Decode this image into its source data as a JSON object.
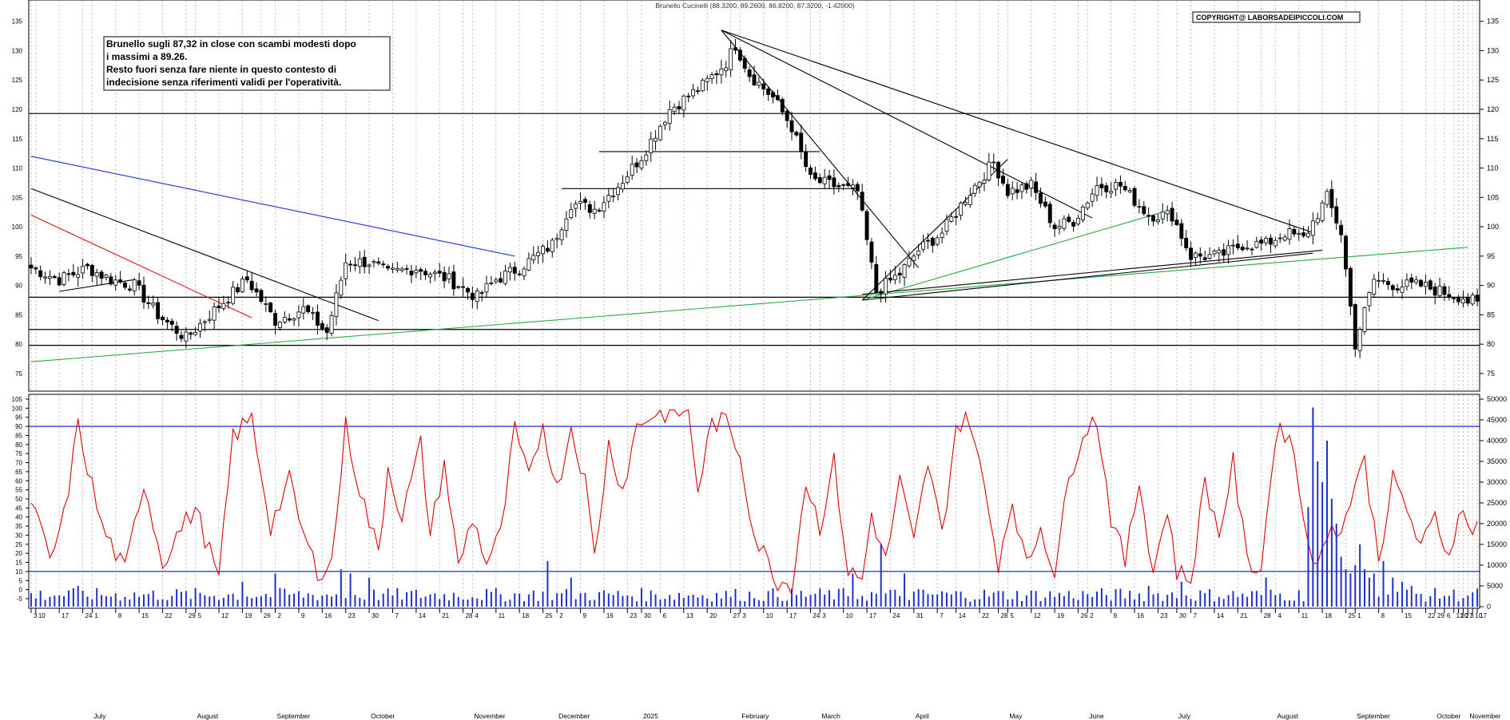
{
  "header": {
    "title": "Brunello Cucinelli (88.3200, 89.2600, 86.8200, 87.3200, -1.42000)",
    "copyright": "COPYRIGHT@ LABORSADEIPICCOLI.COM"
  },
  "annotation": {
    "lines": [
      "Brunello sugli 87,32 in close con scambi modesti dopo",
      "i massimi a 89.26.",
      "Resto fuori senza fare niente in questo contesto di",
      "indecisione senza riferimenti validi per l'operatività."
    ]
  },
  "colors": {
    "candle": "#000000",
    "stochastic": "#e00000",
    "volume": "#1f2fd0",
    "trend_black": "#000000",
    "trend_blue": "#1a2fe0",
    "trend_red": "#e01010",
    "trend_green": "#22aa44",
    "grid": "#bdbdbd"
  },
  "chart_data": [
    {
      "type": "candlestick",
      "ylim": [
        72,
        137
      ],
      "yticks": [
        75,
        80,
        85,
        90,
        95,
        100,
        105,
        110,
        115,
        120,
        125,
        130,
        135
      ],
      "anchors": [
        [
          0,
          93
        ],
        [
          6,
          91
        ],
        [
          12,
          93
        ],
        [
          17,
          91
        ],
        [
          22,
          90
        ],
        [
          27,
          85
        ],
        [
          33,
          81
        ],
        [
          38,
          85
        ],
        [
          46,
          91
        ],
        [
          52,
          84
        ],
        [
          58,
          86
        ],
        [
          63,
          82
        ],
        [
          67,
          94
        ],
        [
          72,
          94
        ],
        [
          76,
          92
        ],
        [
          82,
          93
        ],
        [
          89,
          91
        ],
        [
          95,
          88
        ],
        [
          99,
          91
        ],
        [
          104,
          93
        ],
        [
          111,
          97
        ],
        [
          115,
          104
        ],
        [
          120,
          103
        ],
        [
          125,
          107
        ],
        [
          130,
          112
        ],
        [
          136,
          120
        ],
        [
          143,
          124
        ],
        [
          148,
          128
        ],
        [
          150,
          131
        ],
        [
          153,
          126
        ],
        [
          158,
          122
        ],
        [
          162,
          117
        ],
        [
          166,
          108
        ],
        [
          171,
          107
        ],
        [
          176,
          106
        ],
        [
          180,
          89
        ],
        [
          185,
          92
        ],
        [
          189,
          96
        ],
        [
          194,
          99
        ],
        [
          200,
          106
        ],
        [
          205,
          111
        ],
        [
          208,
          106
        ],
        [
          213,
          107
        ],
        [
          218,
          100
        ],
        [
          222,
          101
        ],
        [
          227,
          107
        ],
        [
          232,
          107
        ],
        [
          238,
          102
        ],
        [
          243,
          102
        ],
        [
          247,
          95
        ],
        [
          253,
          95
        ],
        [
          258,
          97
        ],
        [
          263,
          97
        ],
        [
          267,
          99
        ],
        [
          271,
          98
        ],
        [
          276,
          105
        ],
        [
          279,
          99
        ],
        [
          282,
          80
        ],
        [
          286,
          91
        ],
        [
          291,
          90
        ],
        [
          296,
          90
        ],
        [
          300,
          89
        ],
        [
          305,
          88
        ],
        [
          306,
          87.32
        ]
      ],
      "horizontal_levels": [
        119.3,
        88,
        82.5,
        79.8
      ],
      "trendlines": [
        {
          "color": "black",
          "from": [
            0,
            106.5
          ],
          "to": [
            74,
            84
          ]
        },
        {
          "color": "blue",
          "from": [
            0,
            112
          ],
          "to": [
            103,
            95
          ]
        },
        {
          "color": "red",
          "from": [
            0,
            102
          ],
          "to": [
            47,
            84.5
          ]
        },
        {
          "color": "green",
          "from": [
            0,
            77
          ],
          "to": [
            306,
            96.5
          ]
        },
        {
          "color": "black",
          "from": [
            6,
            89
          ],
          "to": [
            22,
            91
          ]
        },
        {
          "color": "black",
          "from": [
            147,
            133.5
          ],
          "to": [
            189,
            93
          ]
        },
        {
          "color": "black",
          "from": [
            147,
            133.5
          ],
          "to": [
            226,
            101.5
          ]
        },
        {
          "color": "black",
          "from": [
            147,
            133.5
          ],
          "to": [
            273,
            99
          ]
        },
        {
          "color": "black",
          "from": [
            177,
            87.5
          ],
          "to": [
            208,
            111.5
          ]
        },
        {
          "color": "green",
          "from": [
            177,
            87.5
          ],
          "to": [
            241,
            102.5
          ]
        },
        {
          "color": "black",
          "from": [
            177,
            87.5
          ],
          "to": [
            273,
            95.5
          ]
        },
        {
          "color": "black",
          "from": [
            177,
            88.5
          ],
          "to": [
            275,
            96
          ]
        },
        {
          "color": "black",
          "from": [
            121,
            112.8
          ],
          "to": [
            168,
            112.8
          ]
        },
        {
          "color": "black",
          "from": [
            113,
            106.5
          ],
          "to": [
            176,
            106.5
          ]
        }
      ]
    },
    {
      "type": "line",
      "name": "stochastic",
      "ylim": [
        -5,
        100
      ],
      "yticks": [
        -5,
        0,
        5,
        10,
        15,
        20,
        25,
        30,
        35,
        40,
        45,
        50,
        55,
        60,
        65,
        70,
        75,
        80,
        85,
        90,
        95,
        100,
        105
      ],
      "levels": [
        10,
        90
      ],
      "anchors": [
        [
          0,
          50
        ],
        [
          4,
          15
        ],
        [
          7,
          40
        ],
        [
          10,
          90
        ],
        [
          15,
          35
        ],
        [
          20,
          10
        ],
        [
          24,
          60
        ],
        [
          28,
          15
        ],
        [
          31,
          30
        ],
        [
          35,
          45
        ],
        [
          40,
          5
        ],
        [
          43,
          85
        ],
        [
          47,
          94
        ],
        [
          51,
          35
        ],
        [
          55,
          60
        ],
        [
          58,
          30
        ],
        [
          61,
          10
        ],
        [
          64,
          15
        ],
        [
          67,
          90
        ],
        [
          70,
          55
        ],
        [
          74,
          20
        ],
        [
          76,
          68
        ],
        [
          79,
          40
        ],
        [
          83,
          80
        ],
        [
          85,
          30
        ],
        [
          88,
          70
        ],
        [
          91,
          12
        ],
        [
          94,
          40
        ],
        [
          97,
          15
        ],
        [
          100,
          30
        ],
        [
          103,
          88
        ],
        [
          106,
          60
        ],
        [
          109,
          92
        ],
        [
          112,
          55
        ],
        [
          115,
          90
        ],
        [
          118,
          60
        ],
        [
          120,
          18
        ],
        [
          123,
          80
        ],
        [
          126,
          55
        ],
        [
          129,
          90
        ],
        [
          132,
          96
        ],
        [
          137,
          98
        ],
        [
          140,
          98
        ],
        [
          142,
          55
        ],
        [
          145,
          92
        ],
        [
          148,
          92
        ],
        [
          151,
          75
        ],
        [
          154,
          30
        ],
        [
          157,
          15
        ],
        [
          159,
          5
        ],
        [
          162,
          3
        ],
        [
          165,
          60
        ],
        [
          168,
          35
        ],
        [
          171,
          70
        ],
        [
          174,
          10
        ],
        [
          177,
          5
        ],
        [
          179,
          42
        ],
        [
          182,
          15
        ],
        [
          185,
          60
        ],
        [
          188,
          25
        ],
        [
          191,
          70
        ],
        [
          194,
          30
        ],
        [
          197,
          90
        ],
        [
          200,
          94
        ],
        [
          203,
          55
        ],
        [
          206,
          15
        ],
        [
          209,
          50
        ],
        [
          212,
          12
        ],
        [
          215,
          35
        ],
        [
          218,
          10
        ],
        [
          221,
          60
        ],
        [
          224,
          88
        ],
        [
          227,
          94
        ],
        [
          230,
          40
        ],
        [
          233,
          15
        ],
        [
          236,
          60
        ],
        [
          239,
          10
        ],
        [
          242,
          45
        ],
        [
          244,
          10
        ],
        [
          247,
          5
        ],
        [
          250,
          60
        ],
        [
          253,
          30
        ],
        [
          256,
          70
        ],
        [
          259,
          15
        ],
        [
          262,
          12
        ],
        [
          265,
          85
        ],
        [
          268,
          88
        ],
        [
          271,
          40
        ],
        [
          274,
          10
        ],
        [
          277,
          40
        ],
        [
          279,
          30
        ],
        [
          282,
          60
        ],
        [
          284,
          70
        ],
        [
          287,
          18
        ],
        [
          290,
          60
        ],
        [
          293,
          45
        ],
        [
          296,
          22
        ],
        [
          299,
          40
        ],
        [
          302,
          18
        ],
        [
          304,
          45
        ],
        [
          306,
          35
        ]
      ]
    },
    {
      "type": "bar",
      "name": "volume",
      "ylim": [
        0,
        50000
      ],
      "yticks": [
        0,
        5000,
        10000,
        15000,
        20000,
        25000,
        30000,
        35000,
        40000,
        45000,
        50000
      ],
      "base": 3000,
      "spikes": [
        [
          10,
          5000
        ],
        [
          45,
          6000
        ],
        [
          52,
          8000
        ],
        [
          66,
          9000
        ],
        [
          68,
          8000
        ],
        [
          72,
          7000
        ],
        [
          110,
          11000
        ],
        [
          115,
          7000
        ],
        [
          175,
          8000
        ],
        [
          181,
          15000
        ],
        [
          186,
          8000
        ],
        [
          238,
          5000
        ],
        [
          245,
          6000
        ],
        [
          263,
          7000
        ],
        [
          272,
          24000
        ],
        [
          273,
          48000
        ],
        [
          274,
          35000
        ],
        [
          275,
          30000
        ],
        [
          276,
          40000
        ],
        [
          277,
          26000
        ],
        [
          278,
          20000
        ],
        [
          279,
          12000
        ],
        [
          280,
          9000
        ],
        [
          281,
          8000
        ],
        [
          282,
          10000
        ],
        [
          283,
          15000
        ],
        [
          284,
          9000
        ],
        [
          285,
          7000
        ],
        [
          286,
          8000
        ],
        [
          288,
          11000
        ],
        [
          290,
          7000
        ],
        [
          292,
          6000
        ],
        [
          294,
          5000
        ]
      ]
    }
  ],
  "time_axis": {
    "ticks": [
      {
        "i": 0,
        "label": "3",
        "m": ""
      },
      {
        "i": 1,
        "label": "10",
        "m": ""
      },
      {
        "i": 6,
        "label": "17",
        "m": ""
      },
      {
        "i": 11,
        "label": "24",
        "m": ""
      },
      {
        "i": 13,
        "label": "1",
        "m": "July"
      },
      {
        "i": 18,
        "label": "8",
        "m": ""
      },
      {
        "i": 23,
        "label": "15",
        "m": ""
      },
      {
        "i": 28,
        "label": "22",
        "m": ""
      },
      {
        "i": 33,
        "label": "29",
        "m": ""
      },
      {
        "i": 35,
        "label": "5",
        "m": "August"
      },
      {
        "i": 40,
        "label": "12",
        "m": ""
      },
      {
        "i": 45,
        "label": "19",
        "m": ""
      },
      {
        "i": 49,
        "label": "26",
        "m": ""
      },
      {
        "i": 52,
        "label": "2",
        "m": "September"
      },
      {
        "i": 57,
        "label": "9",
        "m": ""
      },
      {
        "i": 62,
        "label": "16",
        "m": ""
      },
      {
        "i": 67,
        "label": "23",
        "m": ""
      },
      {
        "i": 72,
        "label": "30",
        "m": "October"
      },
      {
        "i": 77,
        "label": "7",
        "m": ""
      },
      {
        "i": 82,
        "label": "14",
        "m": ""
      },
      {
        "i": 87,
        "label": "21",
        "m": ""
      },
      {
        "i": 92,
        "label": "28",
        "m": ""
      },
      {
        "i": 94,
        "label": "4",
        "m": "November"
      },
      {
        "i": 99,
        "label": "11",
        "m": ""
      },
      {
        "i": 104,
        "label": "18",
        "m": ""
      },
      {
        "i": 109,
        "label": "25",
        "m": ""
      },
      {
        "i": 112,
        "label": "2",
        "m": "December"
      },
      {
        "i": 117,
        "label": "9",
        "m": ""
      },
      {
        "i": 122,
        "label": "16",
        "m": ""
      },
      {
        "i": 127,
        "label": "23",
        "m": ""
      },
      {
        "i": 130,
        "label": "30",
        "m": "2025"
      },
      {
        "i": 134,
        "label": "6",
        "m": ""
      },
      {
        "i": 139,
        "label": "13",
        "m": ""
      },
      {
        "i": 144,
        "label": "20",
        "m": ""
      },
      {
        "i": 149,
        "label": "27",
        "m": ""
      },
      {
        "i": 151,
        "label": "3",
        "m": "February"
      },
      {
        "i": 156,
        "label": "10",
        "m": ""
      },
      {
        "i": 161,
        "label": "17",
        "m": ""
      },
      {
        "i": 166,
        "label": "24",
        "m": ""
      },
      {
        "i": 168,
        "label": "3",
        "m": "March"
      },
      {
        "i": 173,
        "label": "10",
        "m": ""
      },
      {
        "i": 178,
        "label": "17",
        "m": ""
      },
      {
        "i": 183,
        "label": "24",
        "m": ""
      },
      {
        "i": 188,
        "label": "31",
        "m": "April"
      },
      {
        "i": 193,
        "label": "7",
        "m": ""
      },
      {
        "i": 197,
        "label": "14",
        "m": ""
      },
      {
        "i": 202,
        "label": "22",
        "m": ""
      },
      {
        "i": 206,
        "label": "28",
        "m": ""
      },
      {
        "i": 208,
        "label": "5",
        "m": "May"
      },
      {
        "i": 213,
        "label": "12",
        "m": ""
      },
      {
        "i": 218,
        "label": "19",
        "m": ""
      },
      {
        "i": 223,
        "label": "26",
        "m": ""
      },
      {
        "i": 225,
        "label": "2",
        "m": "June"
      },
      {
        "i": 230,
        "label": "9",
        "m": ""
      },
      {
        "i": 235,
        "label": "16",
        "m": ""
      },
      {
        "i": 240,
        "label": "23",
        "m": ""
      },
      {
        "i": 244,
        "label": "30",
        "m": "July"
      },
      {
        "i": 247,
        "label": "7",
        "m": ""
      },
      {
        "i": 252,
        "label": "14",
        "m": ""
      },
      {
        "i": 257,
        "label": "21",
        "m": ""
      },
      {
        "i": 262,
        "label": "28",
        "m": ""
      },
      {
        "i": 265,
        "label": "4",
        "m": "August"
      },
      {
        "i": 270,
        "label": "11",
        "m": ""
      },
      {
        "i": 275,
        "label": "18",
        "m": ""
      },
      {
        "i": 280,
        "label": "25",
        "m": ""
      },
      {
        "i": 282,
        "label": "1",
        "m": "September"
      },
      {
        "i": 287,
        "label": "8",
        "m": ""
      },
      {
        "i": 292,
        "label": "15",
        "m": ""
      },
      {
        "i": 297,
        "label": "22",
        "m": ""
      },
      {
        "i": 299,
        "label": "29",
        "m": "October"
      },
      {
        "i": 301,
        "label": "6",
        "m": ""
      },
      {
        "i": 303,
        "label": "13",
        "m": ""
      },
      {
        "i": 304,
        "label": "20",
        "m": ""
      },
      {
        "i": 305,
        "label": "27",
        "m": ""
      },
      {
        "i": 306,
        "label": "3",
        "m": "November"
      },
      {
        "i": 307,
        "label": "10",
        "m": ""
      },
      {
        "i": 308,
        "label": "17",
        "m": ""
      }
    ]
  }
}
